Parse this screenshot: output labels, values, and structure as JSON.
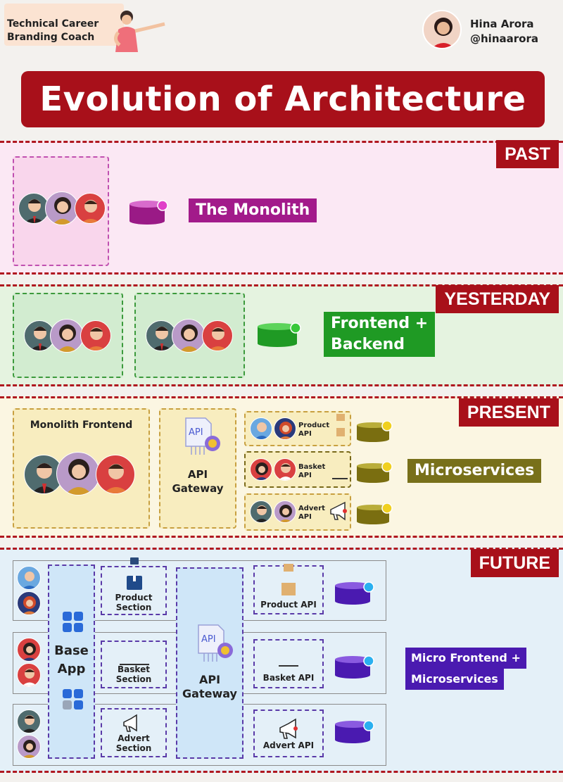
{
  "header": {
    "coach_label_line1": "Technical Career",
    "coach_label_line2": "Branding Coach",
    "author_name": "Hina Arora",
    "author_handle": "@hinaarora"
  },
  "title": "Evolution of Architecture",
  "sections": {
    "past": {
      "tag": "PAST",
      "label": "The Monolith",
      "color": "#a21a8a"
    },
    "yesterday": {
      "tag": "YESTERDAY",
      "label_line1": "Frontend +",
      "label_line2": "Backend",
      "color": "#1f9a24"
    },
    "present": {
      "tag": "PRESENT",
      "monolith_frontend": "Monolith Frontend",
      "api_gateway_line1": "API",
      "api_gateway_line2": "Gateway",
      "api_icon_text": "API",
      "services": [
        {
          "line1": "Product",
          "line2": "API"
        },
        {
          "line1": "Basket",
          "line2": "API"
        },
        {
          "line1": "Advert",
          "line2": "API"
        }
      ],
      "label": "Microservices",
      "color": "#78701a"
    },
    "future": {
      "tag": "FUTURE",
      "base_app_line1": "Base",
      "base_app_line2": "App",
      "sections": [
        {
          "line1": "Product",
          "line2": "Section"
        },
        {
          "line1": "Basket",
          "line2": "Section"
        },
        {
          "line1": "Advert",
          "line2": "Section"
        }
      ],
      "api_gateway_line1": "API",
      "api_gateway_line2": "Gateway",
      "api_icon_text": "API",
      "apis": [
        "Product API",
        "Basket API",
        "Advert API"
      ],
      "label_line1": "Micro Frontend  +",
      "label_line2": "Microservices",
      "color": "#4a1ab0"
    }
  }
}
